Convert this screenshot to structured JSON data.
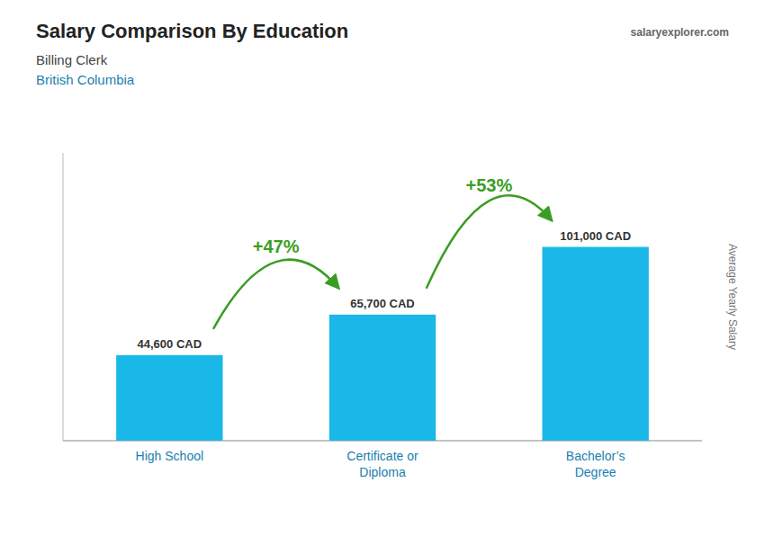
{
  "chart_data": {
    "type": "bar",
    "title": "Salary Comparison By Education",
    "subtitle": [
      "Billing Clerk",
      "British Columbia"
    ],
    "source": "salaryexplorer.com",
    "categories": [
      "High School",
      "Certificate or\nDiploma",
      "Bachelor’s\nDegree"
    ],
    "values": [
      44600,
      65700,
      101000
    ],
    "value_labels": [
      "44,600 CAD",
      "65,700 CAD",
      "101,000 CAD"
    ],
    "data_labels": true,
    "annotations": [
      "+47%",
      "+53%"
    ],
    "ylabel": "Average Yearly Salary",
    "color": "#1ab8e8",
    "ylim": [
      0,
      150000
    ],
    "tick_labels": "x",
    "grid": false
  }
}
